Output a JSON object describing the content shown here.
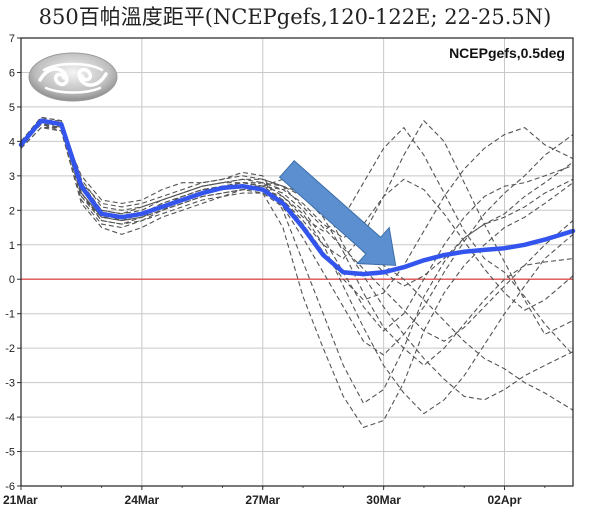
{
  "title": "850百帕溫度距平(NCEPgefs,120-122E; 22-25.5N)",
  "chart_data": {
    "type": "line",
    "annotation": "NCEPgefs,0.5deg",
    "logo_icon": "cwb-cloud-logo",
    "x_ticks": [
      {
        "day": 0,
        "label": "21Mar"
      },
      {
        "day": 3,
        "label": "24Mar"
      },
      {
        "day": 6,
        "label": "27Mar"
      },
      {
        "day": 9,
        "label": "30Mar"
      },
      {
        "day": 12,
        "label": "02Apr"
      }
    ],
    "xlim": [
      0,
      13.7
    ],
    "ylim": [
      -6,
      7
    ],
    "y_ticks": [
      -6,
      -5,
      -4,
      -3,
      -2,
      -1,
      0,
      1,
      2,
      3,
      4,
      5,
      6,
      7
    ],
    "grid": true,
    "zero_line_color": "#e05050",
    "mean_color": "#3355ee",
    "member_color": "#555555",
    "arrow_color": "#5b8fd0",
    "arrow": {
      "from": [
        6.6,
        3.2
      ],
      "to": [
        9.3,
        0.4
      ]
    },
    "series": [
      {
        "role": "mean",
        "x": [
          0,
          0.5,
          1,
          1.5,
          2,
          2.5,
          3,
          3.5,
          4,
          4.5,
          5,
          5.5,
          6,
          6.5,
          7,
          7.5,
          8,
          8.5,
          9,
          9.5,
          10,
          10.5,
          11,
          11.5,
          12,
          12.5,
          13,
          13.7
        ],
        "y": [
          3.9,
          4.6,
          4.5,
          2.7,
          1.9,
          1.8,
          1.9,
          2.1,
          2.3,
          2.5,
          2.65,
          2.7,
          2.6,
          2.2,
          1.5,
          0.7,
          0.2,
          0.15,
          0.2,
          0.35,
          0.55,
          0.7,
          0.8,
          0.85,
          0.9,
          1.0,
          1.15,
          1.4
        ]
      },
      {
        "role": "member",
        "x": [
          0,
          0.5,
          1,
          1.5,
          2,
          2.5,
          3,
          3.5,
          4,
          4.5,
          5,
          5.5,
          6,
          6.5,
          7,
          7.5,
          8,
          8.5,
          9,
          9.5,
          10,
          10.5,
          11,
          11.5,
          12,
          12.5,
          13,
          13.7
        ],
        "y": [
          3.8,
          4.4,
          4.4,
          3.0,
          2.3,
          2.2,
          2.3,
          2.6,
          2.8,
          2.8,
          2.9,
          3.1,
          3.0,
          2.0,
          0.5,
          -1.0,
          -2.5,
          -3.6,
          -3.2,
          -2.0,
          -0.5,
          0.5,
          1.2,
          1.6,
          1.9,
          2.4,
          2.8,
          3.4
        ]
      },
      {
        "role": "member",
        "x": [
          0,
          0.5,
          1,
          1.5,
          2,
          2.5,
          3,
          3.5,
          4,
          4.5,
          5,
          5.5,
          6,
          6.5,
          7,
          7.5,
          8,
          8.5,
          9,
          9.5,
          10,
          10.5,
          11,
          11.5,
          12,
          12.5,
          13,
          13.7
        ],
        "y": [
          4.0,
          4.7,
          4.6,
          2.5,
          1.7,
          1.6,
          1.8,
          2.0,
          2.2,
          2.4,
          2.5,
          2.6,
          2.5,
          1.5,
          -0.5,
          -2.0,
          -3.4,
          -4.3,
          -4.1,
          -3.0,
          -1.5,
          -0.4,
          0.4,
          1.0,
          1.5,
          1.8,
          2.2,
          2.8
        ]
      },
      {
        "role": "member",
        "x": [
          0,
          0.5,
          1,
          1.5,
          2,
          2.5,
          3,
          3.5,
          4,
          4.5,
          5,
          5.5,
          6,
          6.5,
          7,
          7.5,
          8,
          8.5,
          9,
          9.5,
          10,
          10.5,
          11,
          11.5,
          12,
          12.5,
          13,
          13.7
        ],
        "y": [
          3.9,
          4.5,
          4.3,
          2.2,
          1.5,
          1.3,
          1.5,
          1.8,
          2.0,
          2.2,
          2.4,
          2.6,
          2.7,
          2.9,
          3.0,
          2.6,
          1.8,
          1.0,
          0.4,
          0.0,
          -0.6,
          -1.2,
          -1.8,
          -2.3,
          -2.6,
          -3.0,
          -3.3,
          -3.8
        ]
      },
      {
        "role": "member",
        "x": [
          0,
          0.5,
          1,
          1.5,
          2,
          2.5,
          3,
          3.5,
          4,
          4.5,
          5,
          5.5,
          6,
          6.5,
          7,
          7.5,
          8,
          8.5,
          9,
          9.5,
          10,
          10.5,
          11,
          11.5,
          12,
          12.5,
          13,
          13.7
        ],
        "y": [
          3.8,
          4.6,
          4.5,
          2.6,
          1.9,
          1.7,
          1.9,
          2.1,
          2.4,
          2.6,
          2.7,
          2.8,
          2.7,
          2.6,
          2.8,
          2.2,
          1.0,
          0.1,
          -0.8,
          -1.6,
          -2.3,
          -2.9,
          -3.4,
          -3.5,
          -3.2,
          -2.8,
          -2.5,
          -2.1
        ]
      },
      {
        "role": "member",
        "x": [
          0,
          0.5,
          1,
          1.5,
          2,
          2.5,
          3,
          3.5,
          4,
          4.5,
          5,
          5.5,
          6,
          6.5,
          7,
          7.5,
          8,
          8.5,
          9,
          9.5,
          10,
          10.5,
          11,
          11.5,
          12,
          12.5,
          13,
          13.7
        ],
        "y": [
          4.0,
          4.7,
          4.6,
          2.8,
          2.0,
          1.9,
          2.0,
          2.3,
          2.5,
          2.7,
          2.8,
          2.9,
          2.8,
          2.4,
          1.8,
          1.4,
          1.8,
          2.8,
          3.8,
          4.4,
          3.6,
          2.5,
          1.4,
          0.6,
          0.2,
          -0.5,
          -1.3,
          -2.2
        ]
      },
      {
        "role": "member",
        "x": [
          0,
          0.5,
          1,
          1.5,
          2,
          2.5,
          3,
          3.5,
          4,
          4.5,
          5,
          5.5,
          6,
          6.5,
          7,
          7.5,
          8,
          8.5,
          9,
          9.5,
          10,
          10.5,
          11,
          11.5,
          12,
          12.5,
          13,
          13.7
        ],
        "y": [
          3.9,
          4.5,
          4.4,
          2.4,
          1.8,
          1.8,
          1.9,
          2.2,
          2.4,
          2.6,
          2.6,
          2.7,
          2.6,
          2.3,
          1.7,
          1.0,
          0.6,
          1.3,
          2.4,
          3.6,
          4.6,
          4.0,
          2.8,
          1.6,
          0.5,
          -0.6,
          -1.6,
          -1.2
        ]
      },
      {
        "role": "member",
        "x": [
          0,
          0.5,
          1,
          1.5,
          2,
          2.5,
          3,
          3.5,
          4,
          4.5,
          5,
          5.5,
          6,
          6.5,
          7,
          7.5,
          8,
          8.5,
          9,
          9.5,
          10,
          10.5,
          11,
          11.5,
          12,
          12.5,
          13,
          13.7
        ],
        "y": [
          3.8,
          4.4,
          4.3,
          2.3,
          1.6,
          1.5,
          1.7,
          1.9,
          2.1,
          2.3,
          2.4,
          2.5,
          2.5,
          2.1,
          1.2,
          0.2,
          -0.8,
          -1.8,
          -2.2,
          -1.6,
          -0.8,
          0.2,
          1.1,
          1.9,
          2.5,
          3.0,
          3.6,
          4.2
        ]
      },
      {
        "role": "member",
        "x": [
          0,
          0.5,
          1,
          1.5,
          2,
          2.5,
          3,
          3.5,
          4,
          4.5,
          5,
          5.5,
          6,
          6.5,
          7,
          7.5,
          8,
          8.5,
          9,
          9.5,
          10,
          10.5,
          11,
          11.5,
          12,
          12.5,
          13,
          13.7
        ],
        "y": [
          4.0,
          4.6,
          4.5,
          2.7,
          2.0,
          1.9,
          2.1,
          2.3,
          2.5,
          2.7,
          2.8,
          2.9,
          2.9,
          2.7,
          2.4,
          1.8,
          0.8,
          -0.4,
          -1.4,
          -2.0,
          -2.5,
          -2.0,
          -1.3,
          -0.6,
          0.0,
          0.4,
          0.5,
          0.6
        ]
      },
      {
        "role": "member",
        "x": [
          0,
          0.5,
          1,
          1.5,
          2,
          2.5,
          3,
          3.5,
          4,
          4.5,
          5,
          5.5,
          6,
          6.5,
          7,
          7.5,
          8,
          8.5,
          9,
          9.5,
          10,
          10.5,
          11,
          11.5,
          12,
          12.5,
          13,
          13.7
        ],
        "y": [
          3.9,
          4.6,
          4.4,
          2.5,
          1.8,
          1.7,
          1.8,
          2.0,
          2.3,
          2.5,
          2.6,
          2.7,
          2.7,
          2.5,
          2.0,
          1.2,
          0.2,
          -0.8,
          -1.5,
          -1.0,
          0.0,
          1.0,
          1.8,
          2.4,
          2.7,
          2.8,
          3.0,
          3.3
        ]
      },
      {
        "role": "member",
        "x": [
          0,
          0.5,
          1,
          1.5,
          2,
          2.5,
          3,
          3.5,
          4,
          4.5,
          5,
          5.5,
          6,
          6.5,
          7,
          7.5,
          8,
          8.5,
          9,
          9.5,
          10,
          10.5,
          11,
          11.5,
          12,
          12.5,
          13,
          13.7
        ],
        "y": [
          3.9,
          4.5,
          4.5,
          2.6,
          1.9,
          1.8,
          1.9,
          2.2,
          2.4,
          2.6,
          2.7,
          2.8,
          2.8,
          2.6,
          2.2,
          1.6,
          1.2,
          1.6,
          2.4,
          2.9,
          2.6,
          1.9,
          1.1,
          0.3,
          -0.4,
          -0.9,
          -0.6,
          0.1
        ]
      },
      {
        "role": "member",
        "x": [
          0,
          0.5,
          1,
          1.5,
          2,
          2.5,
          3,
          3.5,
          4,
          4.5,
          5,
          5.5,
          6,
          6.5,
          7,
          7.5,
          8,
          8.5,
          9,
          9.5,
          10,
          10.5,
          11,
          11.5,
          12,
          12.5,
          13,
          13.7
        ],
        "y": [
          3.8,
          4.6,
          4.6,
          2.9,
          2.1,
          2.0,
          2.1,
          2.3,
          2.5,
          2.7,
          2.8,
          2.8,
          2.7,
          2.3,
          1.6,
          0.8,
          0.0,
          -0.6,
          -0.4,
          0.4,
          1.4,
          2.4,
          3.2,
          3.8,
          4.2,
          4.4,
          3.9,
          3.5
        ]
      },
      {
        "role": "member",
        "x": [
          0,
          0.5,
          1,
          1.5,
          2,
          2.5,
          3,
          3.5,
          4,
          4.5,
          5,
          5.5,
          6,
          6.5,
          7,
          7.5,
          8,
          8.5,
          9,
          9.5,
          10,
          10.5,
          11,
          11.5,
          12,
          12.5,
          13,
          13.7
        ],
        "y": [
          4.0,
          4.7,
          4.5,
          2.4,
          1.7,
          1.6,
          1.7,
          2.0,
          2.2,
          2.4,
          2.5,
          2.6,
          2.6,
          2.4,
          1.9,
          1.0,
          -0.2,
          -1.4,
          -2.5,
          -3.3,
          -3.9,
          -3.5,
          -2.8,
          -1.9,
          -1.0,
          -0.2,
          0.6,
          1.3
        ]
      },
      {
        "role": "member",
        "x": [
          0,
          0.5,
          1,
          1.5,
          2,
          2.5,
          3,
          3.5,
          4,
          4.5,
          5,
          5.5,
          6,
          6.5,
          7,
          7.5,
          8,
          8.5,
          9,
          9.5,
          10,
          10.5,
          11,
          11.5,
          12,
          12.5,
          13,
          13.7
        ],
        "y": [
          3.9,
          4.5,
          4.4,
          2.5,
          1.8,
          1.7,
          1.8,
          2.1,
          2.3,
          2.5,
          2.6,
          2.7,
          2.8,
          2.7,
          2.5,
          2.0,
          1.4,
          0.8,
          0.2,
          -0.2,
          0.1,
          0.6,
          1.2,
          1.6,
          1.8,
          2.1,
          2.5,
          2.9
        ]
      },
      {
        "role": "member",
        "x": [
          0,
          0.5,
          1,
          1.5,
          2,
          2.5,
          3,
          3.5,
          4,
          4.5,
          5,
          5.5,
          6,
          6.5,
          7,
          7.5,
          8,
          8.5,
          9,
          9.5,
          10,
          10.5,
          11,
          11.5,
          12,
          12.5,
          13,
          13.7
        ],
        "y": [
          3.9,
          4.6,
          4.5,
          2.8,
          2.2,
          2.1,
          2.2,
          2.4,
          2.6,
          2.8,
          2.9,
          3.0,
          2.9,
          2.7,
          2.1,
          1.5,
          0.9,
          0.3,
          -0.3,
          -0.9,
          -1.5,
          -1.8,
          -1.4,
          -0.8,
          -0.2,
          0.4,
          1.0,
          1.7
        ]
      }
    ]
  }
}
